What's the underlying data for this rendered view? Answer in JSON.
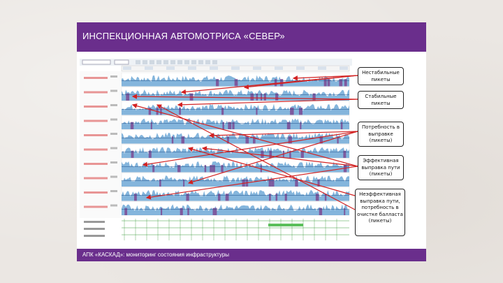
{
  "slide": {
    "title": "ИНСПЕКЦИОННАЯ АВТОМОТРИСА «СЕВЕР»",
    "footer": "АПК «КАСКАД»: мониторинг состояния инфраструктуры"
  },
  "callouts": [
    {
      "id": "unstable",
      "lines": [
        "Нестабильные",
        "пикеты"
      ]
    },
    {
      "id": "stable",
      "lines": [
        "Стабильные",
        "пикеты"
      ]
    },
    {
      "id": "need-straighten",
      "lines": [
        "Потребность в",
        "выправке",
        "(пикеты)"
      ]
    },
    {
      "id": "effective",
      "lines": [
        "Эффективная",
        "выправка пути",
        "(пикеты)"
      ]
    },
    {
      "id": "ineffective",
      "lines": [
        "Неэффективная",
        "выправка пути,",
        "потребность в",
        "очистке балласта",
        "(пикеты)"
      ]
    }
  ],
  "colors": {
    "purple": "#6a2e8c",
    "bar_blue": "#6fa8d6",
    "bar_purple": "#7d5a9e",
    "arrow_red": "#d22222",
    "grid_green": "#3a9a3a"
  },
  "icons": [
    "arrow-icon"
  ]
}
